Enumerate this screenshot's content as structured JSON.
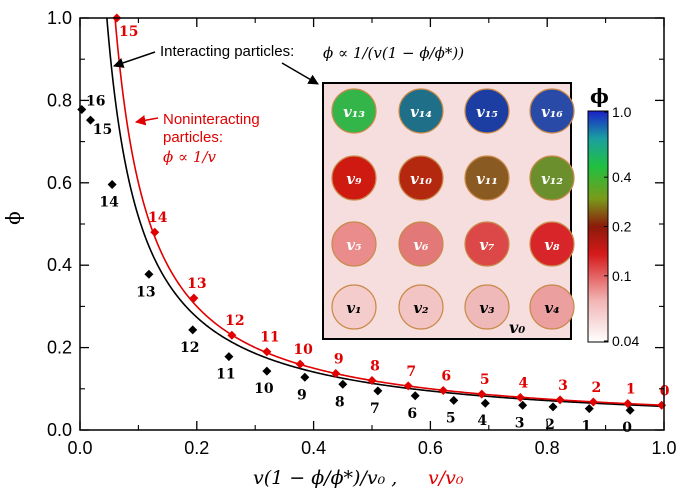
{
  "chart_data": {
    "type": "scatter",
    "xlim": [
      0.0,
      1.0
    ],
    "ylim": [
      0.0,
      1.0
    ],
    "grid": false,
    "x_ticks": [
      "0.0",
      "0.2",
      "0.4",
      "0.6",
      "0.8",
      "1.0"
    ],
    "y_ticks": [
      "0.0",
      "0.2",
      "0.4",
      "0.6",
      "0.8",
      "1.0"
    ],
    "ylabel": "ϕ",
    "xlabel_black": "v(1 − ϕ/ϕ*)/v₀ ,",
    "xlabel_red": "v/v₀",
    "colors": {
      "interacting": "#000000",
      "noninteracting": "#e00000"
    },
    "series": [
      {
        "color": "#000000",
        "marker": "diamond",
        "labels": [
          "0",
          "1",
          "2",
          "3",
          "4",
          "5",
          "6",
          "7",
          "8",
          "9",
          "10",
          "11",
          "12",
          "13",
          "14",
          "15",
          "16"
        ],
        "x": [
          0.942,
          0.872,
          0.81,
          0.758,
          0.694,
          0.64,
          0.574,
          0.51,
          0.45,
          0.385,
          0.32,
          0.255,
          0.193,
          0.118,
          0.055,
          0.018,
          0.003
        ],
        "y": [
          0.048,
          0.052,
          0.056,
          0.06,
          0.065,
          0.072,
          0.083,
          0.095,
          0.111,
          0.128,
          0.143,
          0.178,
          0.243,
          0.378,
          0.596,
          0.752,
          0.778
        ]
      },
      {
        "color": "#e00000",
        "marker": "diamond",
        "labels": [
          "0",
          "1",
          "2",
          "3",
          "4",
          "5",
          "6",
          "7",
          "8",
          "9",
          "10",
          "11",
          "12",
          "13",
          "14",
          "15"
        ],
        "x": [
          0.996,
          0.938,
          0.879,
          0.822,
          0.754,
          0.688,
          0.622,
          0.562,
          0.5,
          0.438,
          0.377,
          0.32,
          0.26,
          0.195,
          0.128,
          0.063
        ],
        "y": [
          0.06,
          0.064,
          0.068,
          0.073,
          0.079,
          0.087,
          0.096,
          0.107,
          0.12,
          0.137,
          0.16,
          0.19,
          0.23,
          0.32,
          0.48,
          1.0
        ]
      }
    ],
    "curves": [
      {
        "color": "#000000",
        "formula": "phi = 0.058 / (x + 0.012)"
      },
      {
        "color": "#e00000",
        "formula": "phi = 0.06 / x"
      }
    ],
    "annotations": {
      "interacting": "Interacting particles:",
      "interacting_formula": "ϕ ∝ 1/(v(1 − ϕ/ϕ*))",
      "noninteracting_line1": "Noninteracting",
      "noninteracting_line2": "particles:",
      "noninteracting_formula": "ϕ ∝ 1/v"
    },
    "inset": {
      "wells": [
        {
          "label": "v₁₃",
          "color": "#33b54a"
        },
        {
          "label": "v₁₄",
          "color": "#1f6f88"
        },
        {
          "label": "v₁₅",
          "color": "#1c3ea3"
        },
        {
          "label": "v₁₆",
          "color": "#2a4aa8"
        },
        {
          "label": "v₉",
          "color": "#cf1a12"
        },
        {
          "label": "v₁₀",
          "color": "#b4280f"
        },
        {
          "label": "v₁₁",
          "color": "#8a5a23"
        },
        {
          "label": "v₁₂",
          "color": "#6b8f2c"
        },
        {
          "label": "v₅",
          "color": "#ea8c8c"
        },
        {
          "label": "v₆",
          "color": "#e27878"
        },
        {
          "label": "v₇",
          "color": "#dc4848"
        },
        {
          "label": "v₈",
          "color": "#d7252a"
        },
        {
          "label": "v₁",
          "color": "#f5cccc"
        },
        {
          "label": "v₂",
          "color": "#f3c4c4"
        },
        {
          "label": "v₃",
          "color": "#f0b9b9"
        },
        {
          "label": "v₄",
          "color": "#ec9f9f"
        }
      ],
      "corner_label": "v₀",
      "colorbar": {
        "title": "ϕ",
        "ticks": [
          "1.0",
          "0.4",
          "0.2",
          "0.1",
          "0.04"
        ],
        "tick_values": [
          1.0,
          0.4,
          0.2,
          0.1,
          0.04
        ]
      }
    }
  }
}
